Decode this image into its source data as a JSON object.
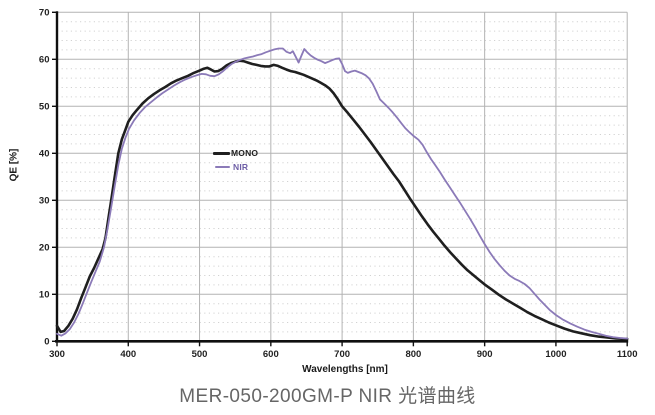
{
  "caption": "MER-050-200GM-P NIR 光谱曲线",
  "colors": {
    "background": "#ffffff",
    "axis": "#0f0f0f",
    "major_grid": "#b3b3b3",
    "minor_grid": "#d2d2d2",
    "tick_label": "#222222",
    "caption_text": "#666666",
    "mono_line": "#1f1f1f",
    "nir_line": "#8b7ab8"
  },
  "chart_data": {
    "type": "line",
    "title": "",
    "xlabel": "Wavelengths [nm]",
    "ylabel": "QE [%]",
    "xlim": [
      300,
      1100
    ],
    "ylim": [
      0,
      70
    ],
    "x_ticks": [
      300,
      400,
      500,
      600,
      700,
      800,
      900,
      1000,
      1100
    ],
    "y_ticks": [
      0,
      10,
      20,
      30,
      40,
      50,
      60,
      70
    ],
    "grid": {
      "major": true,
      "minor_horizontal_step": 2,
      "minor_style": "dotted"
    },
    "legend": {
      "position": "inside plot, left-center",
      "entries": [
        "MONO",
        "NIR"
      ]
    },
    "series": [
      {
        "name": "MONO",
        "color": "#1f1f1f",
        "width": 2.6,
        "points": [
          [
            300,
            3.3
          ],
          [
            305,
            2.0
          ],
          [
            310,
            2.2
          ],
          [
            316,
            3.3
          ],
          [
            322,
            4.8
          ],
          [
            328,
            6.8
          ],
          [
            334,
            9.2
          ],
          [
            340,
            11.5
          ],
          [
            346,
            13.8
          ],
          [
            352,
            15.6
          ],
          [
            358,
            17.6
          ],
          [
            364,
            19.6
          ],
          [
            368,
            22.0
          ],
          [
            372,
            26.0
          ],
          [
            376,
            30.0
          ],
          [
            381,
            35.0
          ],
          [
            386,
            40.0
          ],
          [
            391,
            43.0
          ],
          [
            396,
            45.0
          ],
          [
            400,
            46.7
          ],
          [
            406,
            48.1
          ],
          [
            412,
            49.2
          ],
          [
            420,
            50.6
          ],
          [
            428,
            51.7
          ],
          [
            436,
            52.6
          ],
          [
            444,
            53.4
          ],
          [
            452,
            54.1
          ],
          [
            460,
            54.9
          ],
          [
            468,
            55.5
          ],
          [
            476,
            56.0
          ],
          [
            484,
            56.5
          ],
          [
            492,
            57.1
          ],
          [
            500,
            57.6
          ],
          [
            506,
            58.0
          ],
          [
            511,
            58.2
          ],
          [
            516,
            57.8
          ],
          [
            521,
            57.4
          ],
          [
            526,
            57.5
          ],
          [
            532,
            58.0
          ],
          [
            538,
            58.7
          ],
          [
            544,
            59.2
          ],
          [
            550,
            59.5
          ],
          [
            556,
            59.7
          ],
          [
            562,
            59.6
          ],
          [
            568,
            59.3
          ],
          [
            574,
            59.0
          ],
          [
            580,
            58.8
          ],
          [
            586,
            58.6
          ],
          [
            592,
            58.5
          ],
          [
            598,
            58.5
          ],
          [
            604,
            58.8
          ],
          [
            610,
            58.6
          ],
          [
            616,
            58.2
          ],
          [
            622,
            57.8
          ],
          [
            628,
            57.5
          ],
          [
            634,
            57.3
          ],
          [
            640,
            57.0
          ],
          [
            646,
            56.7
          ],
          [
            652,
            56.3
          ],
          [
            658,
            55.9
          ],
          [
            664,
            55.5
          ],
          [
            670,
            55.0
          ],
          [
            676,
            54.5
          ],
          [
            682,
            53.8
          ],
          [
            688,
            52.8
          ],
          [
            694,
            51.5
          ],
          [
            700,
            50.0
          ],
          [
            708,
            48.6
          ],
          [
            716,
            47.1
          ],
          [
            724,
            45.6
          ],
          [
            732,
            44.0
          ],
          [
            740,
            42.4
          ],
          [
            748,
            40.7
          ],
          [
            756,
            39.0
          ],
          [
            764,
            37.3
          ],
          [
            772,
            35.6
          ],
          [
            780,
            34.0
          ],
          [
            788,
            32.1
          ],
          [
            796,
            30.2
          ],
          [
            804,
            28.4
          ],
          [
            812,
            26.6
          ],
          [
            820,
            24.9
          ],
          [
            828,
            23.3
          ],
          [
            836,
            21.8
          ],
          [
            844,
            20.3
          ],
          [
            852,
            18.9
          ],
          [
            860,
            17.6
          ],
          [
            868,
            16.3
          ],
          [
            876,
            15.1
          ],
          [
            884,
            14.1
          ],
          [
            892,
            13.1
          ],
          [
            900,
            12.1
          ],
          [
            910,
            11.0
          ],
          [
            920,
            9.9
          ],
          [
            930,
            8.9
          ],
          [
            940,
            8.0
          ],
          [
            950,
            7.1
          ],
          [
            960,
            6.2
          ],
          [
            970,
            5.4
          ],
          [
            980,
            4.7
          ],
          [
            990,
            4.0
          ],
          [
            1000,
            3.4
          ],
          [
            1012,
            2.7
          ],
          [
            1024,
            2.1
          ],
          [
            1036,
            1.7
          ],
          [
            1048,
            1.3
          ],
          [
            1060,
            1.0
          ],
          [
            1072,
            0.8
          ],
          [
            1084,
            0.6
          ],
          [
            1100,
            0.5
          ]
        ]
      },
      {
        "name": "NIR",
        "color": "#8b7ab8",
        "width": 1.8,
        "points": [
          [
            300,
            1.6
          ],
          [
            306,
            1.2
          ],
          [
            312,
            1.7
          ],
          [
            318,
            2.6
          ],
          [
            324,
            4.0
          ],
          [
            330,
            5.8
          ],
          [
            336,
            8.0
          ],
          [
            342,
            10.3
          ],
          [
            348,
            12.6
          ],
          [
            354,
            14.8
          ],
          [
            360,
            17.0
          ],
          [
            366,
            20.0
          ],
          [
            371,
            24.0
          ],
          [
            376,
            28.5
          ],
          [
            381,
            33.0
          ],
          [
            386,
            37.5
          ],
          [
            391,
            41.0
          ],
          [
            396,
            43.3
          ],
          [
            401,
            45.2
          ],
          [
            408,
            47.0
          ],
          [
            416,
            48.6
          ],
          [
            424,
            49.9
          ],
          [
            432,
            50.9
          ],
          [
            440,
            51.9
          ],
          [
            448,
            52.8
          ],
          [
            456,
            53.6
          ],
          [
            464,
            54.4
          ],
          [
            472,
            55.1
          ],
          [
            480,
            55.7
          ],
          [
            488,
            56.2
          ],
          [
            496,
            56.6
          ],
          [
            503,
            56.9
          ],
          [
            509,
            56.8
          ],
          [
            515,
            56.5
          ],
          [
            521,
            56.4
          ],
          [
            527,
            56.8
          ],
          [
            533,
            57.5
          ],
          [
            539,
            58.3
          ],
          [
            545,
            59.0
          ],
          [
            551,
            59.5
          ],
          [
            557,
            59.9
          ],
          [
            563,
            60.2
          ],
          [
            569,
            60.4
          ],
          [
            575,
            60.6
          ],
          [
            581,
            60.9
          ],
          [
            587,
            61.1
          ],
          [
            593,
            61.5
          ],
          [
            599,
            61.8
          ],
          [
            605,
            62.1
          ],
          [
            611,
            62.3
          ],
          [
            617,
            62.3
          ],
          [
            622,
            61.6
          ],
          [
            627,
            61.3
          ],
          [
            631,
            61.7
          ],
          [
            635,
            60.5
          ],
          [
            639,
            59.3
          ],
          [
            643,
            60.8
          ],
          [
            647,
            62.2
          ],
          [
            651,
            61.5
          ],
          [
            656,
            60.8
          ],
          [
            661,
            60.3
          ],
          [
            666,
            59.9
          ],
          [
            671,
            59.6
          ],
          [
            676,
            59.2
          ],
          [
            681,
            59.5
          ],
          [
            686,
            59.8
          ],
          [
            691,
            60.1
          ],
          [
            696,
            60.2
          ],
          [
            700,
            59.0
          ],
          [
            704,
            57.5
          ],
          [
            708,
            57.1
          ],
          [
            713,
            57.4
          ],
          [
            718,
            57.6
          ],
          [
            723,
            57.3
          ],
          [
            728,
            57.0
          ],
          [
            733,
            56.6
          ],
          [
            738,
            55.9
          ],
          [
            743,
            54.8
          ],
          [
            748,
            53.2
          ],
          [
            753,
            51.5
          ],
          [
            759,
            50.6
          ],
          [
            765,
            49.7
          ],
          [
            771,
            48.7
          ],
          [
            777,
            47.6
          ],
          [
            783,
            46.4
          ],
          [
            789,
            45.3
          ],
          [
            795,
            44.4
          ],
          [
            801,
            43.6
          ],
          [
            807,
            42.9
          ],
          [
            813,
            41.8
          ],
          [
            819,
            40.2
          ],
          [
            825,
            38.7
          ],
          [
            831,
            37.4
          ],
          [
            837,
            36.1
          ],
          [
            844,
            34.4
          ],
          [
            851,
            32.8
          ],
          [
            858,
            31.2
          ],
          [
            865,
            29.6
          ],
          [
            872,
            27.9
          ],
          [
            879,
            26.2
          ],
          [
            886,
            24.4
          ],
          [
            893,
            22.5
          ],
          [
            900,
            20.7
          ],
          [
            907,
            19.0
          ],
          [
            914,
            17.5
          ],
          [
            921,
            16.2
          ],
          [
            928,
            15.0
          ],
          [
            935,
            14.0
          ],
          [
            942,
            13.3
          ],
          [
            949,
            12.8
          ],
          [
            956,
            12.2
          ],
          [
            963,
            11.3
          ],
          [
            970,
            10.1
          ],
          [
            977,
            8.9
          ],
          [
            984,
            7.8
          ],
          [
            991,
            6.7
          ],
          [
            1000,
            5.6
          ],
          [
            1010,
            4.6
          ],
          [
            1020,
            3.8
          ],
          [
            1030,
            3.1
          ],
          [
            1040,
            2.5
          ],
          [
            1050,
            2.0
          ],
          [
            1060,
            1.6
          ],
          [
            1070,
            1.2
          ],
          [
            1080,
            0.9
          ],
          [
            1090,
            0.7
          ],
          [
            1100,
            0.6
          ]
        ]
      }
    ]
  }
}
